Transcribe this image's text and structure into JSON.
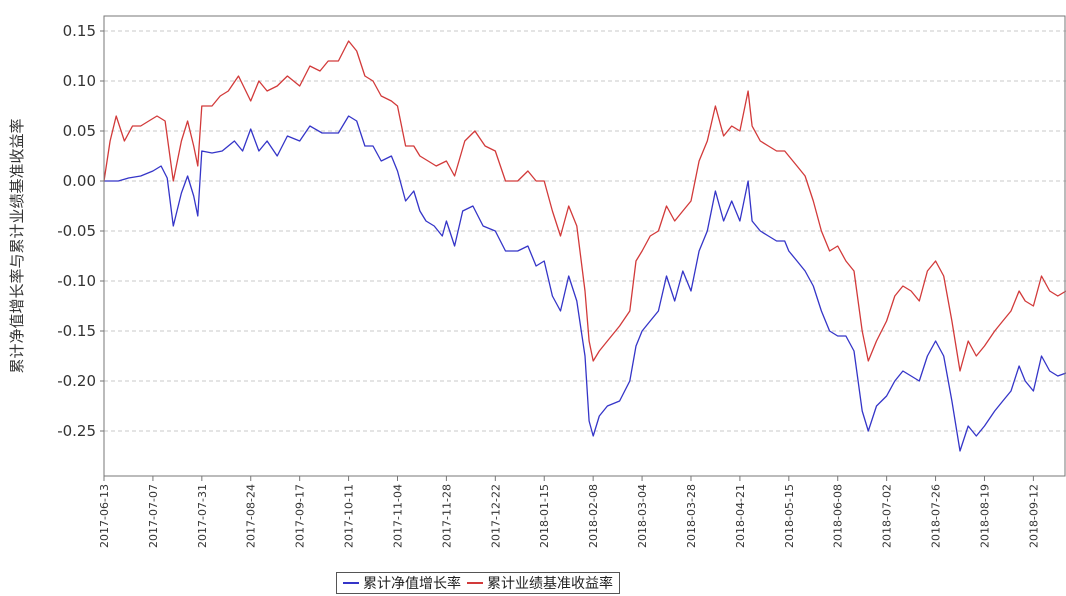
{
  "chart_data": {
    "type": "line",
    "title": "",
    "xlabel": "",
    "ylabel": "累计净值增长率与累计业绩基准收益率",
    "ylim": [
      -0.295,
      0.165
    ],
    "yticks": [
      -0.25,
      -0.2,
      -0.15,
      -0.1,
      -0.05,
      0.0,
      0.05,
      0.1,
      0.15
    ],
    "ytick_labels": [
      "-0.25",
      "-0.20",
      "-0.15",
      "-0.10",
      "-0.05",
      "0.00",
      "0.05",
      "0.10",
      "0.15"
    ],
    "grid": true,
    "legend": "bottom",
    "xlim": [
      "2017-06-13",
      "2018-09-28"
    ],
    "x_tick_labels": [
      "2017-06-13",
      "2017-07-07",
      "2017-07-31",
      "2017-08-24",
      "2017-09-17",
      "2017-10-11",
      "2017-11-04",
      "2017-11-28",
      "2017-12-22",
      "2018-01-15",
      "2018-02-08",
      "2018-03-04",
      "2018-03-28",
      "2018-04-21",
      "2018-05-15",
      "2018-06-08",
      "2018-07-02",
      "2018-07-26",
      "2018-08-19",
      "2018-09-12"
    ],
    "series": [
      {
        "name": "累计净值增长率",
        "color": "#3535c8",
        "points": [
          [
            "2017-06-13",
            0.0
          ],
          [
            "2017-06-20",
            0.0
          ],
          [
            "2017-06-25",
            0.003
          ],
          [
            "2017-07-01",
            0.005
          ],
          [
            "2017-07-07",
            0.01
          ],
          [
            "2017-07-11",
            0.015
          ],
          [
            "2017-07-14",
            0.003
          ],
          [
            "2017-07-17",
            -0.045
          ],
          [
            "2017-07-21",
            -0.012
          ],
          [
            "2017-07-24",
            0.005
          ],
          [
            "2017-07-27",
            -0.015
          ],
          [
            "2017-07-29",
            -0.035
          ],
          [
            "2017-07-31",
            0.03
          ],
          [
            "2017-08-05",
            0.028
          ],
          [
            "2017-08-10",
            0.03
          ],
          [
            "2017-08-16",
            0.04
          ],
          [
            "2017-08-20",
            0.03
          ],
          [
            "2017-08-24",
            0.052
          ],
          [
            "2017-08-28",
            0.03
          ],
          [
            "2017-09-01",
            0.04
          ],
          [
            "2017-09-06",
            0.025
          ],
          [
            "2017-09-11",
            0.045
          ],
          [
            "2017-09-17",
            0.04
          ],
          [
            "2017-09-22",
            0.055
          ],
          [
            "2017-09-28",
            0.048
          ],
          [
            "2017-10-02",
            0.048
          ],
          [
            "2017-10-06",
            0.048
          ],
          [
            "2017-10-11",
            0.065
          ],
          [
            "2017-10-15",
            0.06
          ],
          [
            "2017-10-19",
            0.035
          ],
          [
            "2017-10-23",
            0.035
          ],
          [
            "2017-10-27",
            0.02
          ],
          [
            "2017-11-01",
            0.025
          ],
          [
            "2017-11-04",
            0.01
          ],
          [
            "2017-11-08",
            -0.02
          ],
          [
            "2017-11-12",
            -0.01
          ],
          [
            "2017-11-15",
            -0.03
          ],
          [
            "2017-11-18",
            -0.04
          ],
          [
            "2017-11-22",
            -0.045
          ],
          [
            "2017-11-26",
            -0.055
          ],
          [
            "2017-11-28",
            -0.04
          ],
          [
            "2017-12-02",
            -0.065
          ],
          [
            "2017-12-06",
            -0.03
          ],
          [
            "2017-12-11",
            -0.025
          ],
          [
            "2017-12-16",
            -0.045
          ],
          [
            "2017-12-22",
            -0.05
          ],
          [
            "2017-12-27",
            -0.07
          ],
          [
            "2018-01-02",
            -0.07
          ],
          [
            "2018-01-07",
            -0.065
          ],
          [
            "2018-01-11",
            -0.085
          ],
          [
            "2018-01-15",
            -0.08
          ],
          [
            "2018-01-19",
            -0.115
          ],
          [
            "2018-01-23",
            -0.13
          ],
          [
            "2018-01-27",
            -0.095
          ],
          [
            "2018-01-31",
            -0.12
          ],
          [
            "2018-02-04",
            -0.175
          ],
          [
            "2018-02-06",
            -0.24
          ],
          [
            "2018-02-08",
            -0.255
          ],
          [
            "2018-02-11",
            -0.235
          ],
          [
            "2018-02-15",
            -0.225
          ],
          [
            "2018-02-21",
            -0.22
          ],
          [
            "2018-02-26",
            -0.2
          ],
          [
            "2018-03-01",
            -0.165
          ],
          [
            "2018-03-04",
            -0.15
          ],
          [
            "2018-03-08",
            -0.14
          ],
          [
            "2018-03-12",
            -0.13
          ],
          [
            "2018-03-16",
            -0.095
          ],
          [
            "2018-03-20",
            -0.12
          ],
          [
            "2018-03-24",
            -0.09
          ],
          [
            "2018-03-28",
            -0.11
          ],
          [
            "2018-04-01",
            -0.07
          ],
          [
            "2018-04-05",
            -0.05
          ],
          [
            "2018-04-09",
            -0.01
          ],
          [
            "2018-04-13",
            -0.04
          ],
          [
            "2018-04-17",
            -0.02
          ],
          [
            "2018-04-21",
            -0.04
          ],
          [
            "2018-04-25",
            0.0
          ],
          [
            "2018-04-27",
            -0.04
          ],
          [
            "2018-05-01",
            -0.05
          ],
          [
            "2018-05-05",
            -0.055
          ],
          [
            "2018-05-09",
            -0.06
          ],
          [
            "2018-05-13",
            -0.06
          ],
          [
            "2018-05-15",
            -0.07
          ],
          [
            "2018-05-19",
            -0.08
          ],
          [
            "2018-05-23",
            -0.09
          ],
          [
            "2018-05-27",
            -0.105
          ],
          [
            "2018-05-31",
            -0.13
          ],
          [
            "2018-06-04",
            -0.15
          ],
          [
            "2018-06-08",
            -0.155
          ],
          [
            "2018-06-12",
            -0.155
          ],
          [
            "2018-06-16",
            -0.17
          ],
          [
            "2018-06-20",
            -0.23
          ],
          [
            "2018-06-23",
            -0.25
          ],
          [
            "2018-06-27",
            -0.225
          ],
          [
            "2018-07-02",
            -0.215
          ],
          [
            "2018-07-06",
            -0.2
          ],
          [
            "2018-07-10",
            -0.19
          ],
          [
            "2018-07-14",
            -0.195
          ],
          [
            "2018-07-18",
            -0.2
          ],
          [
            "2018-07-22",
            -0.175
          ],
          [
            "2018-07-26",
            -0.16
          ],
          [
            "2018-07-30",
            -0.175
          ],
          [
            "2018-08-03",
            -0.22
          ],
          [
            "2018-08-07",
            -0.27
          ],
          [
            "2018-08-11",
            -0.245
          ],
          [
            "2018-08-15",
            -0.255
          ],
          [
            "2018-08-19",
            -0.245
          ],
          [
            "2018-08-24",
            -0.23
          ],
          [
            "2018-08-28",
            -0.22
          ],
          [
            "2018-09-01",
            -0.21
          ],
          [
            "2018-09-05",
            -0.185
          ],
          [
            "2018-09-08",
            -0.2
          ],
          [
            "2018-09-12",
            -0.21
          ],
          [
            "2018-09-16",
            -0.175
          ],
          [
            "2018-09-20",
            -0.19
          ],
          [
            "2018-09-24",
            -0.195
          ],
          [
            "2018-09-28",
            -0.192
          ]
        ]
      },
      {
        "name": "累计业绩基准收益率",
        "color": "#d23a3a",
        "points": [
          [
            "2017-06-13",
            0.0
          ],
          [
            "2017-06-16",
            0.04
          ],
          [
            "2017-06-19",
            0.065
          ],
          [
            "2017-06-23",
            0.04
          ],
          [
            "2017-06-27",
            0.055
          ],
          [
            "2017-07-01",
            0.055
          ],
          [
            "2017-07-05",
            0.06
          ],
          [
            "2017-07-09",
            0.065
          ],
          [
            "2017-07-13",
            0.06
          ],
          [
            "2017-07-17",
            0.0
          ],
          [
            "2017-07-21",
            0.04
          ],
          [
            "2017-07-24",
            0.06
          ],
          [
            "2017-07-27",
            0.035
          ],
          [
            "2017-07-29",
            0.015
          ],
          [
            "2017-07-31",
            0.075
          ],
          [
            "2017-08-05",
            0.075
          ],
          [
            "2017-08-09",
            0.085
          ],
          [
            "2017-08-13",
            0.09
          ],
          [
            "2017-08-18",
            0.105
          ],
          [
            "2017-08-24",
            0.08
          ],
          [
            "2017-08-28",
            0.1
          ],
          [
            "2017-09-01",
            0.09
          ],
          [
            "2017-09-06",
            0.095
          ],
          [
            "2017-09-11",
            0.105
          ],
          [
            "2017-09-17",
            0.095
          ],
          [
            "2017-09-22",
            0.115
          ],
          [
            "2017-09-27",
            0.11
          ],
          [
            "2017-10-01",
            0.12
          ],
          [
            "2017-10-06",
            0.12
          ],
          [
            "2017-10-11",
            0.14
          ],
          [
            "2017-10-15",
            0.13
          ],
          [
            "2017-10-19",
            0.105
          ],
          [
            "2017-10-23",
            0.1
          ],
          [
            "2017-10-27",
            0.085
          ],
          [
            "2017-11-01",
            0.08
          ],
          [
            "2017-11-04",
            0.075
          ],
          [
            "2017-11-08",
            0.035
          ],
          [
            "2017-11-12",
            0.035
          ],
          [
            "2017-11-15",
            0.025
          ],
          [
            "2017-11-19",
            0.02
          ],
          [
            "2017-11-23",
            0.015
          ],
          [
            "2017-11-28",
            0.02
          ],
          [
            "2017-12-02",
            0.005
          ],
          [
            "2017-12-07",
            0.04
          ],
          [
            "2017-12-12",
            0.05
          ],
          [
            "2017-12-17",
            0.035
          ],
          [
            "2017-12-22",
            0.03
          ],
          [
            "2017-12-27",
            0.0
          ],
          [
            "2018-01-02",
            0.0
          ],
          [
            "2018-01-07",
            0.01
          ],
          [
            "2018-01-11",
            0.0
          ],
          [
            "2018-01-15",
            0.0
          ],
          [
            "2018-01-19",
            -0.03
          ],
          [
            "2018-01-23",
            -0.055
          ],
          [
            "2018-01-27",
            -0.025
          ],
          [
            "2018-01-31",
            -0.045
          ],
          [
            "2018-02-04",
            -0.11
          ],
          [
            "2018-02-06",
            -0.16
          ],
          [
            "2018-02-08",
            -0.18
          ],
          [
            "2018-02-11",
            -0.17
          ],
          [
            "2018-02-15",
            -0.16
          ],
          [
            "2018-02-21",
            -0.145
          ],
          [
            "2018-02-26",
            -0.13
          ],
          [
            "2018-03-01",
            -0.08
          ],
          [
            "2018-03-04",
            -0.07
          ],
          [
            "2018-03-08",
            -0.055
          ],
          [
            "2018-03-12",
            -0.05
          ],
          [
            "2018-03-16",
            -0.025
          ],
          [
            "2018-03-20",
            -0.04
          ],
          [
            "2018-03-24",
            -0.03
          ],
          [
            "2018-03-28",
            -0.02
          ],
          [
            "2018-04-01",
            0.02
          ],
          [
            "2018-04-05",
            0.04
          ],
          [
            "2018-04-09",
            0.075
          ],
          [
            "2018-04-13",
            0.045
          ],
          [
            "2018-04-17",
            0.055
          ],
          [
            "2018-04-21",
            0.05
          ],
          [
            "2018-04-25",
            0.09
          ],
          [
            "2018-04-27",
            0.055
          ],
          [
            "2018-05-01",
            0.04
          ],
          [
            "2018-05-05",
            0.035
          ],
          [
            "2018-05-09",
            0.03
          ],
          [
            "2018-05-13",
            0.03
          ],
          [
            "2018-05-15",
            0.025
          ],
          [
            "2018-05-19",
            0.015
          ],
          [
            "2018-05-23",
            0.005
          ],
          [
            "2018-05-27",
            -0.02
          ],
          [
            "2018-05-31",
            -0.05
          ],
          [
            "2018-06-04",
            -0.07
          ],
          [
            "2018-06-08",
            -0.065
          ],
          [
            "2018-06-12",
            -0.08
          ],
          [
            "2018-06-16",
            -0.09
          ],
          [
            "2018-06-20",
            -0.15
          ],
          [
            "2018-06-23",
            -0.18
          ],
          [
            "2018-06-27",
            -0.16
          ],
          [
            "2018-07-02",
            -0.14
          ],
          [
            "2018-07-06",
            -0.115
          ],
          [
            "2018-07-10",
            -0.105
          ],
          [
            "2018-07-14",
            -0.11
          ],
          [
            "2018-07-18",
            -0.12
          ],
          [
            "2018-07-22",
            -0.09
          ],
          [
            "2018-07-26",
            -0.08
          ],
          [
            "2018-07-30",
            -0.095
          ],
          [
            "2018-08-03",
            -0.14
          ],
          [
            "2018-08-07",
            -0.19
          ],
          [
            "2018-08-11",
            -0.16
          ],
          [
            "2018-08-15",
            -0.175
          ],
          [
            "2018-08-19",
            -0.165
          ],
          [
            "2018-08-24",
            -0.15
          ],
          [
            "2018-08-28",
            -0.14
          ],
          [
            "2018-09-01",
            -0.13
          ],
          [
            "2018-09-05",
            -0.11
          ],
          [
            "2018-09-08",
            -0.12
          ],
          [
            "2018-09-12",
            -0.125
          ],
          [
            "2018-09-16",
            -0.095
          ],
          [
            "2018-09-20",
            -0.11
          ],
          [
            "2018-09-24",
            -0.115
          ],
          [
            "2018-09-28",
            -0.11
          ]
        ]
      }
    ]
  }
}
